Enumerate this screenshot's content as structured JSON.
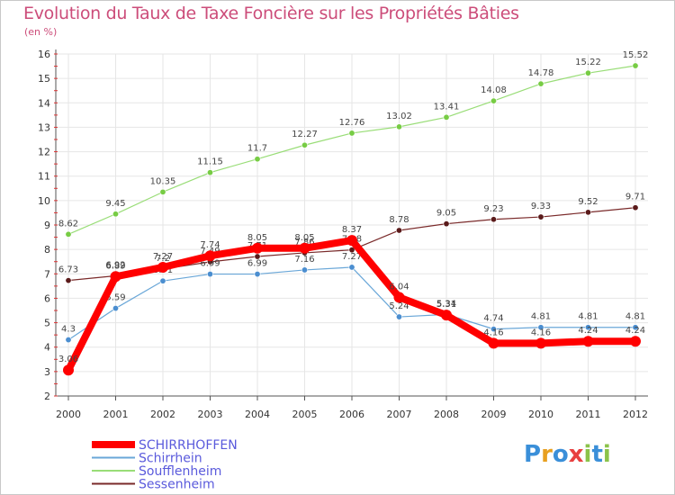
{
  "header": {
    "title": "Evolution du Taux de Taxe Foncière sur les Propriétés Bâties",
    "subtitle": "(en %)"
  },
  "logo": {
    "letters": [
      "P",
      "r",
      "o",
      "x",
      "i",
      "t",
      "i"
    ],
    "colors": [
      "#3a8fd9",
      "#e8a020",
      "#3a8fd9",
      "#e84040",
      "#8bc34a",
      "#3a8fd9",
      "#8bc34a"
    ]
  },
  "chart_data": {
    "type": "line",
    "x": [
      "2000",
      "2001",
      "2002",
      "2003",
      "2004",
      "2005",
      "2006",
      "2007",
      "2008",
      "2009",
      "2010",
      "2011",
      "2012"
    ],
    "ylim": [
      2,
      16
    ],
    "yticks": [
      "2",
      "3",
      "4",
      "5",
      "6",
      "7",
      "8",
      "9",
      "10",
      "11",
      "12",
      "13",
      "14",
      "15",
      "16"
    ],
    "grid": true,
    "legend_position": "bottom-left",
    "series": [
      {
        "name": "Sessenheim",
        "color": "#7a2a2a",
        "point_color": "#5a1a1a",
        "width": 1.2,
        "values": [
          6.73,
          6.92,
          7.2,
          7.49,
          7.71,
          7.86,
          7.98,
          8.78,
          9.05,
          9.23,
          9.33,
          9.52,
          9.71
        ],
        "labels": [
          "6.73",
          "6.92",
          "7.2",
          "7.49",
          "7.71",
          "7.86",
          "7.98",
          "8.78",
          "9.05",
          "9.23",
          "9.33",
          "9.52",
          "9.71"
        ]
      },
      {
        "name": "Soufflenheim",
        "color": "#99dd77",
        "point_color": "#77cc44",
        "width": 1.2,
        "values": [
          8.62,
          9.45,
          10.35,
          11.15,
          11.7,
          12.27,
          12.76,
          13.02,
          13.41,
          14.08,
          14.78,
          15.22,
          15.52
        ],
        "labels": [
          "8.62",
          "9.45",
          "10.35",
          "11.15",
          "11.7",
          "12.27",
          "12.76",
          "13.02",
          "13.41",
          "14.08",
          "14.78",
          "15.22",
          "15.52"
        ]
      },
      {
        "name": "Schirrhein",
        "color": "#6aa7d8",
        "point_color": "#4b8ed0",
        "width": 1.2,
        "values": [
          4.3,
          5.59,
          6.71,
          6.99,
          6.99,
          7.16,
          7.27,
          5.24,
          5.34,
          4.74,
          4.81,
          4.81,
          4.81
        ],
        "labels": [
          "4.3",
          "5.59",
          "6.71",
          "6.99",
          "6.99",
          "7.16",
          "7.27",
          "5.24",
          "5.34",
          "4.74",
          "4.81",
          "4.81",
          "4.81"
        ]
      },
      {
        "name": "SCHIRRHOFFEN",
        "color": "#ff0000",
        "point_color": "#ff0000",
        "width": 8,
        "values": [
          3.06,
          6.89,
          7.27,
          7.74,
          8.05,
          8.05,
          8.37,
          6.04,
          5.31,
          4.16,
          4.16,
          4.24,
          4.24
        ],
        "labels": [
          "3.06",
          "6.89",
          "7.27",
          "7.74",
          "8.05",
          "8.05",
          "8.37",
          "6.04",
          "5.31",
          "4.16",
          "4.16",
          "4.24",
          "4.24"
        ]
      }
    ],
    "legend": [
      {
        "name": "SCHIRRHOFFEN",
        "color": "#ff0000",
        "text_color": "#5a5adc",
        "width": 8
      },
      {
        "name": "Schirrhein",
        "color": "#6aa7d8",
        "text_color": "#5a5adc",
        "width": 2
      },
      {
        "name": "Soufflenheim",
        "color": "#99dd77",
        "text_color": "#5a5adc",
        "width": 2
      },
      {
        "name": "Sessenheim",
        "color": "#7a2a2a",
        "text_color": "#5a5adc",
        "width": 2
      }
    ]
  }
}
